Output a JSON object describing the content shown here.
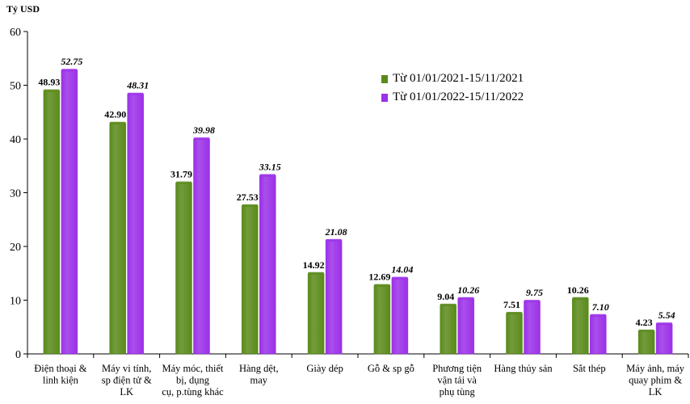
{
  "chart_data": {
    "type": "bar",
    "ylabel": "Tỷ USD",
    "ylim": [
      0,
      60
    ],
    "yticks": [
      0,
      10,
      20,
      30,
      40,
      50,
      60
    ],
    "grid": false,
    "legend_position": "upper-right",
    "categories": [
      [
        "Điện thoại &",
        "linh kiện"
      ],
      [
        "Máy vi tính,",
        "sp điện tử &",
        "LK"
      ],
      [
        "Máy móc, thiết",
        "bị, dụng",
        "cụ, p.tùng khác"
      ],
      [
        "Hàng dệt,",
        "may"
      ],
      [
        "Giày dép"
      ],
      [
        "Gỗ & sp gỗ"
      ],
      [
        "Phương tiện",
        "vận tải và",
        "phụ tùng"
      ],
      [
        "Hàng thủy sản"
      ],
      [
        "Sắt thép"
      ],
      [
        "Máy ảnh, máy",
        "quay phim &",
        "LK"
      ]
    ],
    "series": [
      {
        "name": "Từ 01/01/2021-15/11/2021",
        "color": "#5a8a1a",
        "values": [
          48.93,
          42.9,
          31.79,
          27.53,
          14.92,
          12.69,
          9.04,
          7.51,
          10.26,
          4.23
        ],
        "labels": [
          "48.93",
          "42.90",
          "31.79",
          "27.53",
          "14.92",
          "12.69",
          "9.04",
          "7.51",
          "10.26",
          "4.23"
        ]
      },
      {
        "name": "Từ 01/01/2022-15/11/2022",
        "color": "#9b30e8",
        "values": [
          52.75,
          48.31,
          39.98,
          33.15,
          21.08,
          14.04,
          10.26,
          9.75,
          7.1,
          5.54
        ],
        "labels": [
          "52.75",
          "48.31",
          "39.98",
          "33.15",
          "21.08",
          "14.04",
          "10.26",
          "9.75",
          "7.10",
          "5.54"
        ]
      }
    ]
  }
}
